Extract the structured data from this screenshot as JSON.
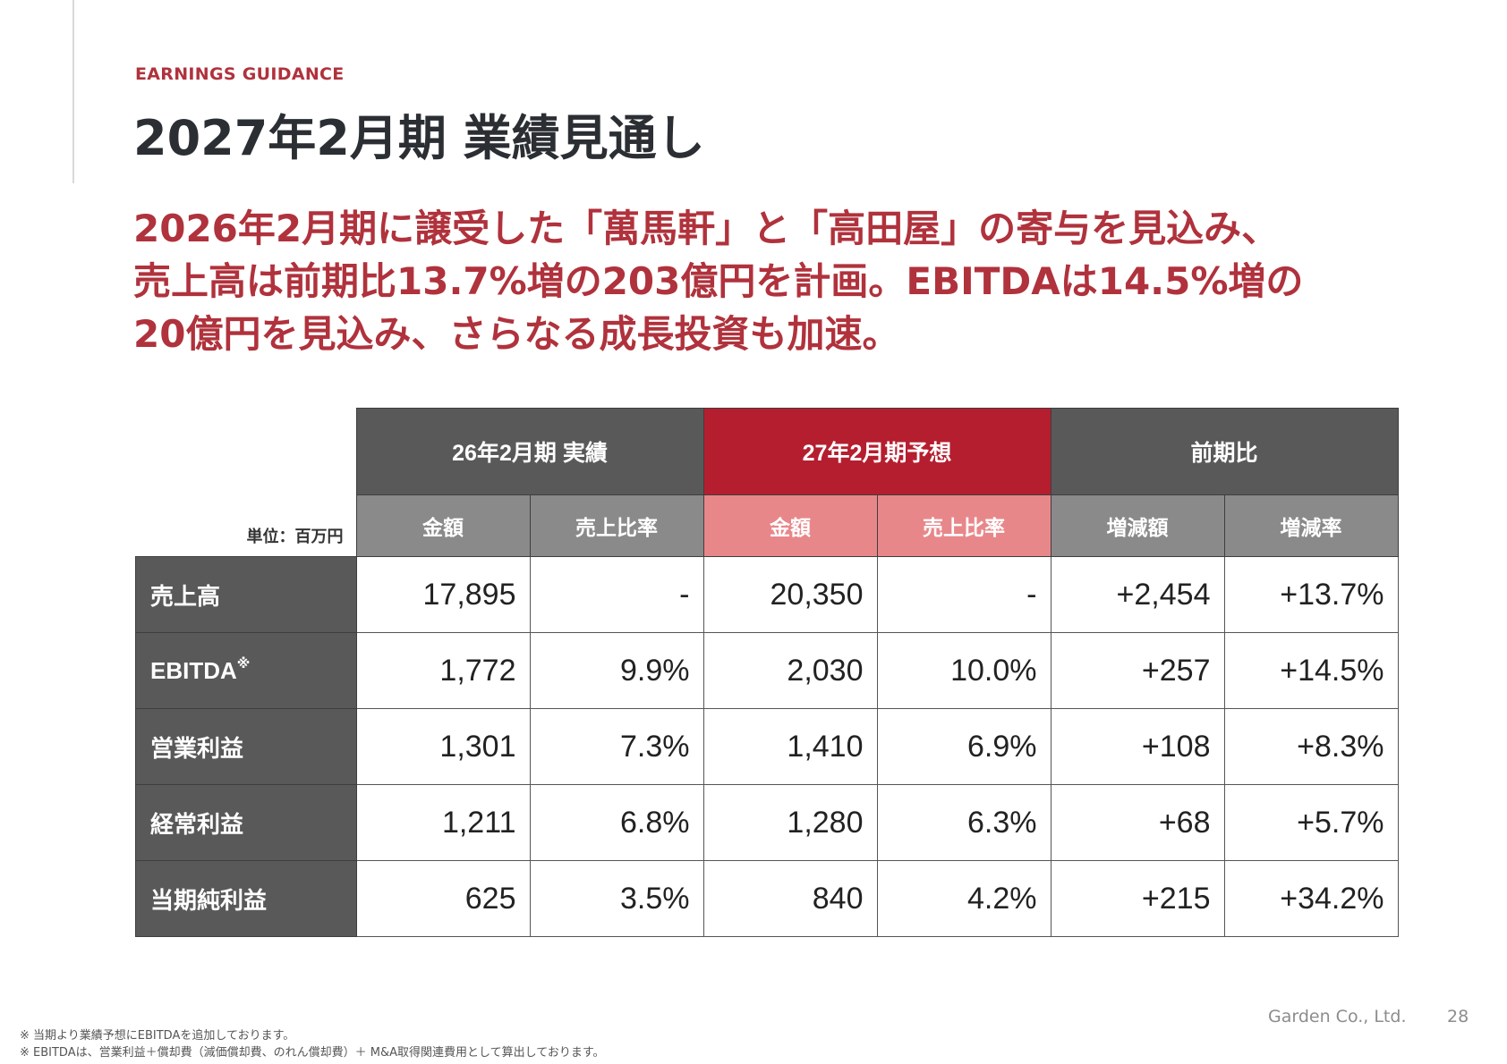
{
  "header": {
    "eyebrow": "EARNINGS GUIDANCE",
    "title": "2027年2月期 業績見通し"
  },
  "lead": {
    "line1": "2026年2月期に譲受した「萬馬軒」と「高田屋」の寄与を見込み、",
    "line2": "売上高は前期比13.7%増の203億円を計画。EBITDAは14.5%増の",
    "line3": "20億円を見込み、さらなる成長投資も加速。"
  },
  "table": {
    "unit": "単位：百万円",
    "groups": [
      "26年2月期 実績",
      "27年2月期予想",
      "前期比"
    ],
    "subheaders": [
      "金額",
      "売上比率",
      "金額",
      "売上比率",
      "増減額",
      "増減率"
    ],
    "rows": [
      {
        "label": "売上高",
        "mark": "",
        "values": [
          "17,895",
          "-",
          "20,350",
          "-",
          "+2,454",
          "+13.7%"
        ]
      },
      {
        "label": "EBITDA",
        "mark": "※",
        "values": [
          "1,772",
          "9.9%",
          "2,030",
          "10.0%",
          "+257",
          "+14.5%"
        ]
      },
      {
        "label": "営業利益",
        "mark": "",
        "values": [
          "1,301",
          "7.3%",
          "1,410",
          "6.9%",
          "+108",
          "+8.3%"
        ]
      },
      {
        "label": "経常利益",
        "mark": "",
        "values": [
          "1,211",
          "6.8%",
          "1,280",
          "6.3%",
          "+68",
          "+5.7%"
        ]
      },
      {
        "label": "当期純利益",
        "mark": "",
        "values": [
          "625",
          "3.5%",
          "840",
          "4.2%",
          "+215",
          "+34.2%"
        ]
      }
    ]
  },
  "footer": {
    "company": "Garden Co., Ltd.",
    "page": "28",
    "note1": "※ 当期より業績予想にEBITDAを追加しております。",
    "note2": "※ EBITDAは、営業利益＋償却費（減価償却費、のれん償却費）＋ M&A取得関連費用として算出しております。"
  },
  "colors": {
    "accent_red": "#b0323c",
    "header_dark": "#595959",
    "header_red": "#b51e2f",
    "sub_gray": "#8a8a8a",
    "sub_pink": "#e8878a"
  }
}
